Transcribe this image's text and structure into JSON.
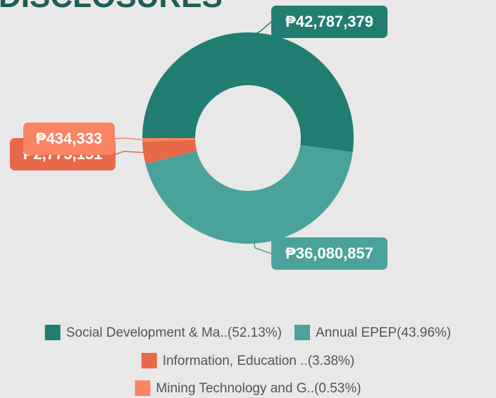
{
  "chart_data": {
    "type": "donut",
    "title": "DISCLOSURES",
    "categories": [
      "Social Development & Ma..(52.13%)",
      "Annual EPEP(43.96%)",
      "Information, Education ..(3.38%)",
      "Mining Technology and G..(0.53%)"
    ],
    "values": [
      42787379,
      36080857,
      2775151,
      434333
    ],
    "value_labels": [
      "₱42,787,379",
      "₱36,080,857",
      "₱2,775,151",
      "₱434,333"
    ],
    "colors": [
      "#217d71",
      "#4aa39a",
      "#e8694a",
      "#fa8464"
    ],
    "legend": "bottom"
  }
}
